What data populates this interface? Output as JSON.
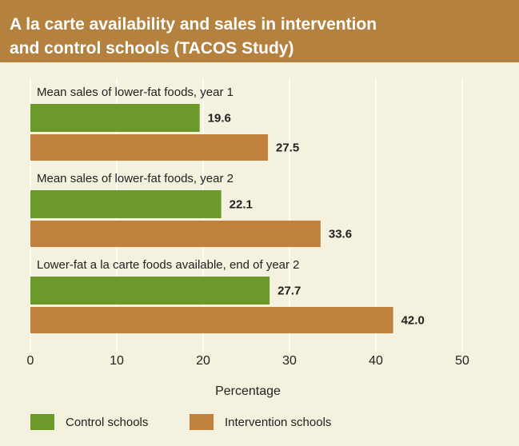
{
  "chart_data": {
    "type": "bar",
    "orientation": "horizontal",
    "title": [
      "A la carte availability and sales in intervention",
      "and control schools (TACOS Study)"
    ],
    "categories": [
      "Mean sales of lower-fat foods, year 1",
      "Mean sales of lower-fat foods, year 2",
      "Lower-fat a la carte foods available, end of year 2"
    ],
    "series": [
      {
        "name": "Control schools",
        "color": "#6b9a2b",
        "values": [
          19.6,
          22.1,
          27.7
        ],
        "value_labels": [
          "19.6",
          "22.1",
          "27.7"
        ]
      },
      {
        "name": "Intervention schools",
        "color": "#c0813d",
        "values": [
          27.5,
          33.6,
          42
        ],
        "value_labels": [
          "27.5",
          "33.6",
          "42.0"
        ]
      }
    ],
    "xlabel": "Percentage",
    "xlim": [
      0,
      50
    ],
    "xticks": [
      0,
      10,
      20,
      30,
      40,
      50
    ],
    "grid": true
  }
}
